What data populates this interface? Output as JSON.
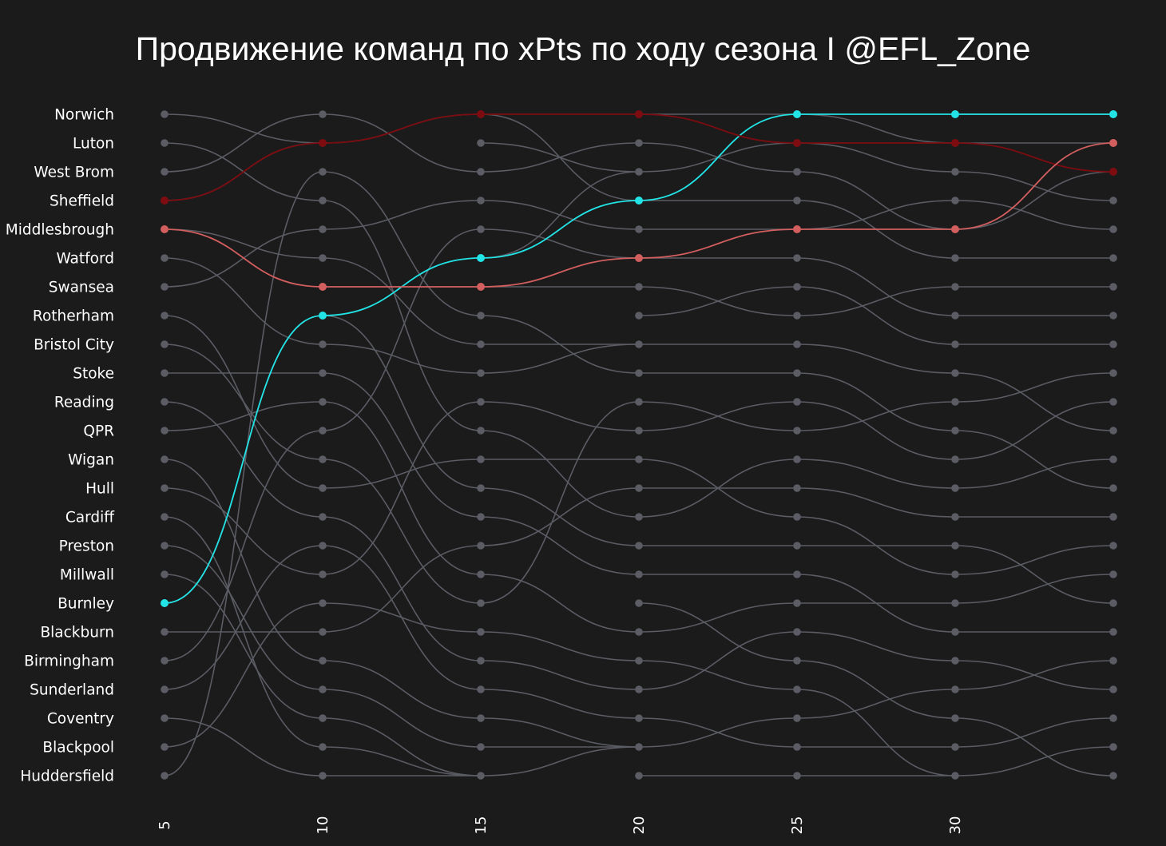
{
  "chart_data": {
    "type": "bump",
    "title": "Продвижение команд по xPts по ходу сезона I @EFL_Zone",
    "xlabel": "",
    "ylabel": "",
    "x": [
      5,
      10,
      15,
      20,
      25,
      30,
      35
    ],
    "x_tick_labels": [
      "5",
      "10",
      "15",
      "20",
      "25",
      "30"
    ],
    "rank_labels": [
      "Norwich",
      "Luton",
      "West Brom",
      "Sheffield",
      "Middlesbrough",
      "Watford",
      "Swansea",
      "Rotherham",
      "Bristol City",
      "Stoke",
      "Reading",
      "QPR",
      "Wigan",
      "Hull",
      "Cardiff",
      "Preston",
      "Millwall",
      "Burnley",
      "Blackburn",
      "Birmingham",
      "Sunderland",
      "Coventry",
      "Blackpool",
      "Huddersfield"
    ],
    "grid": false,
    "legend": "none",
    "colors": {
      "background": "#1b1b1c",
      "default_line": "#5b5c64",
      "text": "#ffffff"
    },
    "highlighted_series": [
      {
        "color": "#22e4e6",
        "values": [
          18,
          8,
          6,
          4,
          1,
          1,
          1
        ]
      },
      {
        "color": "#7d0c10",
        "values": [
          4,
          2,
          1,
          1,
          2,
          2,
          3
        ]
      },
      {
        "color": "#d25e5e",
        "values": [
          5,
          7,
          7,
          6,
          5,
          5,
          2
        ]
      }
    ],
    "segments": [
      [
        [
          1,
          2
        ],
        [
          2,
          4
        ],
        [
          3,
          1
        ],
        [
          4,
          2
        ],
        [
          5,
          6
        ],
        [
          6,
          9
        ],
        [
          7,
          5
        ],
        [
          8,
          14
        ],
        [
          9,
          13
        ],
        [
          10,
          10
        ],
        [
          11,
          15
        ],
        [
          12,
          11
        ],
        [
          13,
          20
        ],
        [
          14,
          17
        ],
        [
          15,
          23
        ],
        [
          16,
          21
        ],
        [
          17,
          22
        ],
        [
          18,
          8
        ],
        [
          19,
          19
        ],
        [
          20,
          12
        ],
        [
          21,
          16
        ],
        [
          22,
          24
        ],
        [
          23,
          18
        ],
        [
          24,
          3
        ]
      ],
      [
        [
          1,
          3
        ],
        [
          2,
          1
        ],
        [
          3,
          8
        ],
        [
          4,
          12
        ],
        [
          5,
          4
        ],
        [
          6,
          9
        ],
        [
          7,
          7
        ],
        [
          8,
          14
        ],
        [
          9,
          10
        ],
        [
          10,
          15
        ],
        [
          11,
          17
        ],
        [
          12,
          5
        ],
        [
          13,
          18
        ],
        [
          14,
          13
        ],
        [
          15,
          20
        ],
        [
          16,
          21
        ],
        [
          17,
          11
        ],
        [
          18,
          19
        ],
        [
          19,
          16
        ],
        [
          20,
          22
        ],
        [
          21,
          23
        ],
        [
          22,
          24
        ],
        [
          23,
          24
        ],
        [
          24,
          24
        ]
      ],
      [
        [
          1,
          4
        ],
        [
          2,
          3
        ],
        [
          3,
          2
        ],
        [
          4,
          5
        ],
        [
          5,
          6
        ],
        [
          6,
          3
        ],
        [
          7,
          7
        ],
        [
          8,
          10
        ],
        [
          9,
          9
        ],
        [
          10,
          9
        ],
        [
          11,
          12
        ],
        [
          12,
          15
        ],
        [
          13,
          13
        ],
        [
          14,
          16
        ],
        [
          15,
          17
        ],
        [
          16,
          14
        ],
        [
          17,
          19
        ],
        [
          18,
          11
        ],
        [
          19,
          20
        ],
        [
          20,
          21
        ],
        [
          21,
          22
        ],
        [
          22,
          23
        ],
        [
          23,
          23
        ],
        [
          24,
          23
        ]
      ],
      [
        [
          1,
          1
        ],
        [
          2,
          3
        ],
        [
          3,
          2
        ],
        [
          4,
          4
        ],
        [
          5,
          5
        ],
        [
          6,
          6
        ],
        [
          7,
          8
        ],
        [
          8,
          7
        ],
        [
          9,
          9
        ],
        [
          10,
          10
        ],
        [
          11,
          12
        ],
        [
          12,
          11
        ],
        [
          13,
          15
        ],
        [
          14,
          14
        ],
        [
          15,
          13
        ],
        [
          16,
          16
        ],
        [
          17,
          17
        ],
        [
          18,
          20
        ],
        [
          19,
          18
        ],
        [
          20,
          21
        ],
        [
          21,
          19
        ],
        [
          22,
          23
        ],
        [
          23,
          22
        ],
        [
          24,
          24
        ]
      ],
      [
        [
          1,
          2
        ],
        [
          2,
          3
        ],
        [
          3,
          5
        ],
        [
          4,
          6
        ],
        [
          5,
          4
        ],
        [
          6,
          8
        ],
        [
          7,
          9
        ],
        [
          8,
          7
        ],
        [
          9,
          10
        ],
        [
          10,
          12
        ],
        [
          11,
          13
        ],
        [
          12,
          11
        ],
        [
          13,
          14
        ],
        [
          14,
          15
        ],
        [
          15,
          17
        ],
        [
          16,
          16
        ],
        [
          17,
          19
        ],
        [
          18,
          18
        ],
        [
          19,
          20
        ],
        [
          20,
          22
        ],
        [
          21,
          24
        ],
        [
          22,
          21
        ],
        [
          23,
          23
        ],
        [
          24,
          24
        ]
      ],
      [
        [
          1,
          1
        ],
        [
          2,
          2
        ],
        [
          3,
          4
        ],
        [
          4,
          5
        ],
        [
          5,
          3
        ],
        [
          6,
          6
        ],
        [
          7,
          7
        ],
        [
          8,
          8
        ],
        [
          9,
          9
        ],
        [
          10,
          12
        ],
        [
          11,
          10
        ],
        [
          12,
          14
        ],
        [
          13,
          11
        ],
        [
          14,
          13
        ],
        [
          15,
          15
        ],
        [
          16,
          18
        ],
        [
          17,
          16
        ],
        [
          18,
          17
        ],
        [
          19,
          19
        ],
        [
          20,
          21
        ],
        [
          21,
          20
        ],
        [
          22,
          24
        ],
        [
          23,
          22
        ],
        [
          24,
          23
        ]
      ]
    ]
  }
}
